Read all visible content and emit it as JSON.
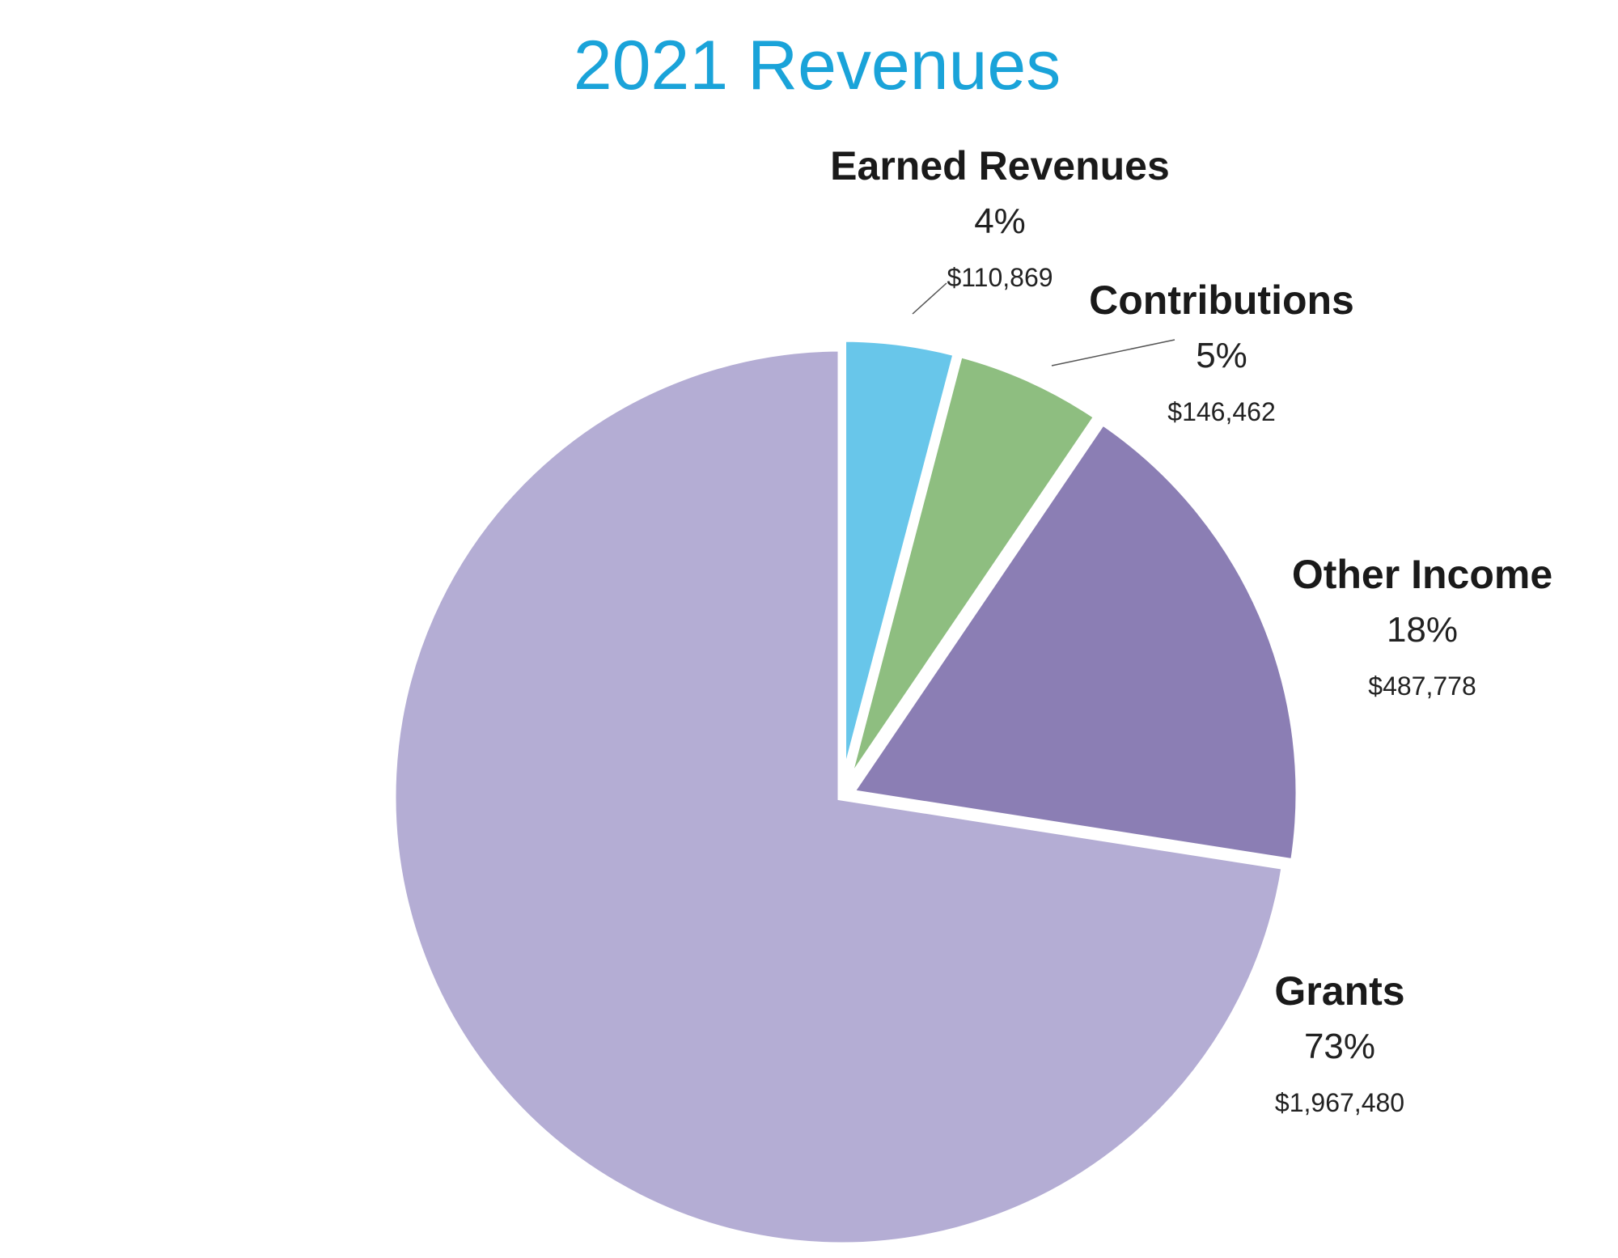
{
  "chart_data": {
    "type": "pie",
    "title": "2021 Revenues",
    "title_color": "#1AA3D9",
    "start_angle_deg": 0,
    "direction": "clockwise",
    "slices": [
      {
        "name": "Earned Revenues",
        "percent": "4%",
        "amount": "$110,869",
        "value": 110869,
        "color": "#68C6EA"
      },
      {
        "name": "Contributions",
        "percent": "5%",
        "amount": "$146,462",
        "value": 146462,
        "color": "#8EBE80"
      },
      {
        "name": "Other Income",
        "percent": "18%",
        "amount": "$487,778",
        "value": 487778,
        "color": "#8B7EB4"
      },
      {
        "name": "Grants",
        "percent": "73%",
        "amount": "$1,967,480",
        "value": 1967480,
        "color": "#B4ADD4"
      }
    ]
  }
}
